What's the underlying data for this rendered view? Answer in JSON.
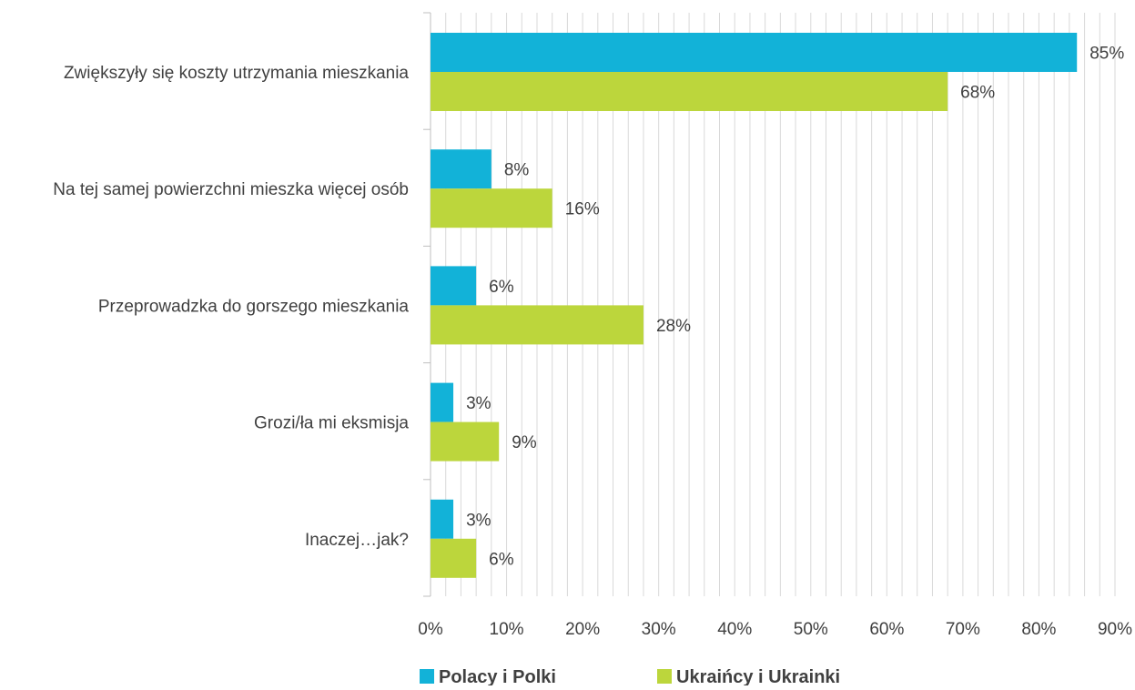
{
  "chart_data": {
    "type": "bar",
    "orientation": "horizontal",
    "title": "",
    "xlabel": "",
    "ylabel": "",
    "categories": [
      "Zwiększyły się koszty utrzymania mieszkania",
      "Na tej samej powierzchni mieszka więcej osób",
      "Przeprowadzka do gorszego mieszkania",
      "Grozi/ła mi eksmisja",
      "Inaczej…jak?"
    ],
    "series": [
      {
        "name": "Polacy i Polki",
        "color": "#12B2D8",
        "values": [
          85,
          8,
          6,
          3,
          3
        ],
        "value_labels": [
          "85%",
          "8%",
          "6%",
          "3%",
          "3%"
        ]
      },
      {
        "name": "Ukraińcy i Ukrainki",
        "color": "#BCD63C",
        "values": [
          68,
          16,
          28,
          9,
          6
        ],
        "value_labels": [
          "68%",
          "16%",
          "28%",
          "9%",
          "6%"
        ]
      }
    ],
    "xlim": [
      0,
      90
    ],
    "x_ticks": [
      0,
      10,
      20,
      30,
      40,
      50,
      60,
      70,
      80,
      90
    ],
    "x_tick_labels": [
      "0%",
      "10%",
      "20%",
      "30%",
      "40%",
      "50%",
      "60%",
      "70%",
      "80%",
      "90%"
    ],
    "grid": true,
    "gridline_color": "#D9D9D9",
    "legend_position": "bottom"
  }
}
